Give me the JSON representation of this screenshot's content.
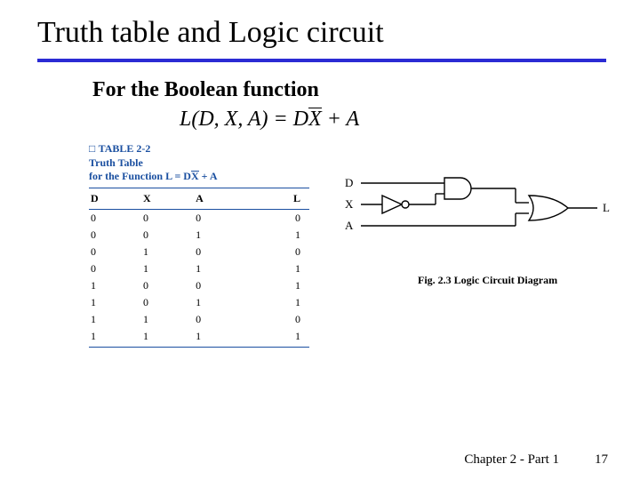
{
  "title": "Truth table and Logic circuit",
  "subtitle": "For the Boolean function",
  "equation": {
    "lhs": "L(D, X, A) = D",
    "barvar": "X",
    "rhs": " + A"
  },
  "table": {
    "caption_line1": "TABLE 2-2",
    "caption_line2": "Truth Table",
    "caption_line3_pre": "for the Function L = D",
    "caption_line3_bar": "X",
    "caption_line3_post": " + A",
    "headers": [
      "D",
      "X",
      "A",
      "L"
    ],
    "rows": [
      [
        "0",
        "0",
        "0",
        "0"
      ],
      [
        "0",
        "0",
        "1",
        "1"
      ],
      [
        "0",
        "1",
        "0",
        "0"
      ],
      [
        "0",
        "1",
        "1",
        "1"
      ],
      [
        "1",
        "0",
        "0",
        "1"
      ],
      [
        "1",
        "0",
        "1",
        "1"
      ],
      [
        "1",
        "1",
        "0",
        "0"
      ],
      [
        "1",
        "1",
        "1",
        "1"
      ]
    ]
  },
  "circuit": {
    "inputs": [
      "D",
      "X",
      "A"
    ],
    "output": "L",
    "caption": "Fig. 2.3 Logic Circuit Diagram",
    "stroke": "#000000",
    "fill": "#ffffff",
    "line_width": 1.4
  },
  "footer": {
    "chapter": "Chapter 2 - Part 1",
    "page": "17"
  },
  "colors": {
    "rule": "#2b2bd4",
    "table_accent": "#1a4fa0"
  }
}
